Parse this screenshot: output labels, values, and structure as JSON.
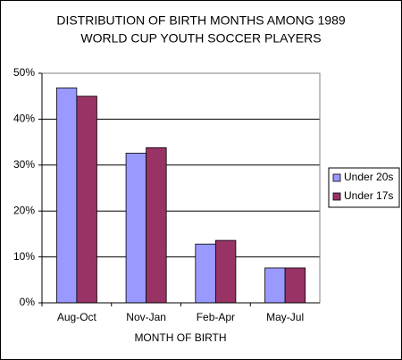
{
  "chart_data": {
    "type": "bar",
    "title": [
      "DISTRIBUTION OF BIRTH MONTHS AMONG 1989",
      "WORLD CUP YOUTH SOCCER PLAYERS"
    ],
    "x_label": "MONTH OF BIRTH",
    "categories": [
      "Aug-Oct",
      "Nov-Jan",
      "Feb-Apr",
      "May-Jul"
    ],
    "series": [
      {
        "name": "Under 20s",
        "color": "#9999ff",
        "values": [
          46.8,
          32.6,
          12.8,
          7.6
        ]
      },
      {
        "name": "Under 17s",
        "color": "#993366",
        "values": [
          45.0,
          33.8,
          13.6,
          7.6
        ]
      }
    ],
    "ylim": [
      0,
      50
    ],
    "yticks": [
      {
        "value": 0,
        "label": "0%"
      },
      {
        "value": 10,
        "label": "10%"
      },
      {
        "value": 20,
        "label": "20%"
      },
      {
        "value": 30,
        "label": "30%"
      },
      {
        "value": 40,
        "label": "40%"
      },
      {
        "value": 50,
        "label": "50%"
      }
    ],
    "grid": true,
    "legend": "right"
  }
}
